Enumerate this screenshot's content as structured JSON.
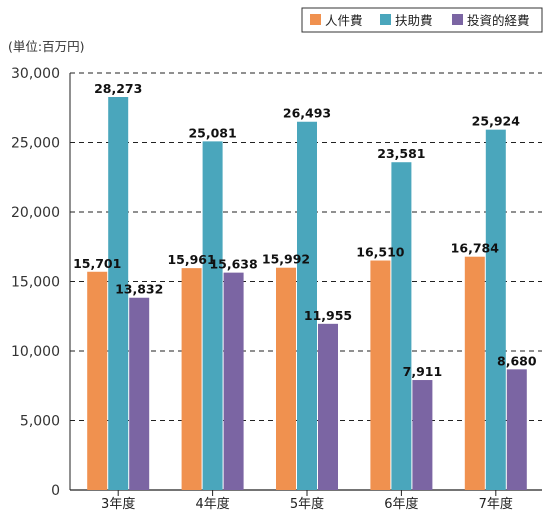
{
  "chart_data": {
    "type": "bar",
    "unit_label": "(単位:百万円)",
    "categories": [
      "3年度",
      "4年度",
      "5年度",
      "6年度",
      "7年度"
    ],
    "series": [
      {
        "name": "人件費",
        "color": "#F0914F",
        "values": [
          15701,
          15961,
          15992,
          16510,
          16784
        ]
      },
      {
        "name": "扶助費",
        "color": "#4AA6BC",
        "values": [
          28273,
          25081,
          26493,
          23581,
          25924
        ]
      },
      {
        "name": "投資的経費",
        "color": "#7B65A3",
        "values": [
          13832,
          15638,
          11955,
          7911,
          8680
        ]
      }
    ],
    "ylim": [
      0,
      30000
    ],
    "yticks": [
      0,
      5000,
      10000,
      15000,
      20000,
      25000,
      30000
    ],
    "ytick_labels": [
      "0",
      "5,000",
      "10,000",
      "15,000",
      "20,000",
      "25,000",
      "30,000"
    ],
    "grid": "dashed horizontal",
    "legend_position": "top-right",
    "data_labels": [
      [
        "15,701",
        "15,961",
        "15,992",
        "16,510",
        "16,784"
      ],
      [
        "28,273",
        "25,081",
        "26,493",
        "23,581",
        "25,924"
      ],
      [
        "13,832",
        "15,638",
        "11,955",
        "7,911",
        "8,680"
      ]
    ]
  }
}
